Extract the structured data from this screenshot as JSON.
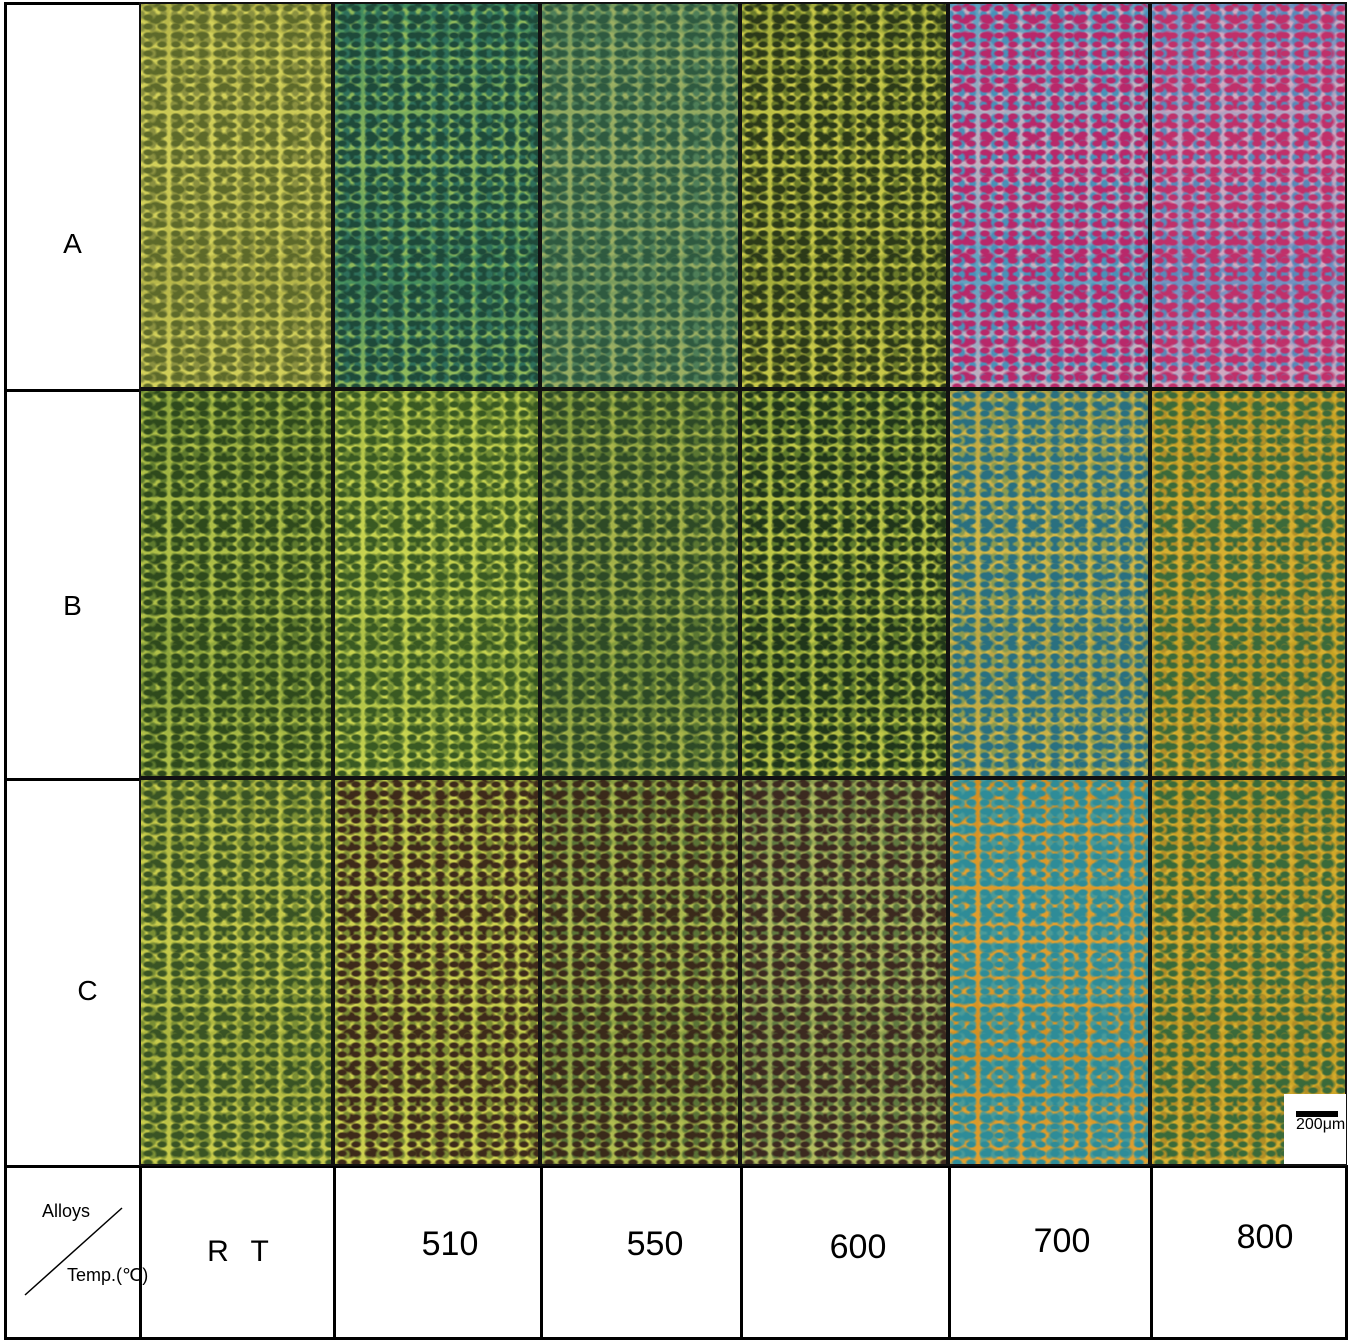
{
  "rows": [
    {
      "label": "A"
    },
    {
      "label": "B"
    },
    {
      "label": "C"
    }
  ],
  "header": {
    "corner_top": "Alloys",
    "corner_bottom": "Temp.(℃)"
  },
  "columns": [
    "R T",
    "510",
    "550",
    "600",
    "700",
    "800"
  ],
  "scale_bar": "200μm"
}
